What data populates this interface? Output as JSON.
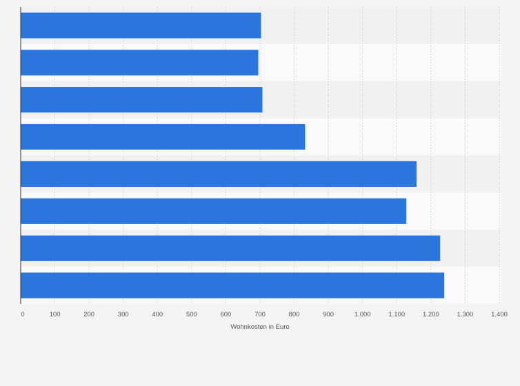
{
  "chart_data": {
    "type": "bar",
    "orientation": "horizontal",
    "title": "",
    "xlabel": "Wohnkosten in Euro",
    "ylabel": "",
    "categories": [
      "",
      "",
      "",
      "",
      "",
      "",
      "",
      ""
    ],
    "values": [
      703,
      695,
      707,
      832,
      1158,
      1128,
      1227,
      1239
    ],
    "xlim": [
      0,
      1400
    ],
    "x_ticks": [
      0,
      100,
      200,
      300,
      400,
      500,
      600,
      700,
      800,
      900,
      1000,
      1100,
      1200,
      1300,
      1400
    ],
    "x_tick_labels": [
      "0",
      "100",
      "200",
      "300",
      "400",
      "500",
      "600",
      "700",
      "800",
      "900",
      "1.000",
      "1.100",
      "1.200",
      "1.300",
      "1.400"
    ],
    "grid": true,
    "legend": "none",
    "colors": {
      "bar": "#2a76dd",
      "band_dark": "#f1f1f1",
      "band_light": "#f9f9f9",
      "grid": "#d9d9d9",
      "axis": "#333333",
      "background": "#f4f4f4"
    }
  }
}
